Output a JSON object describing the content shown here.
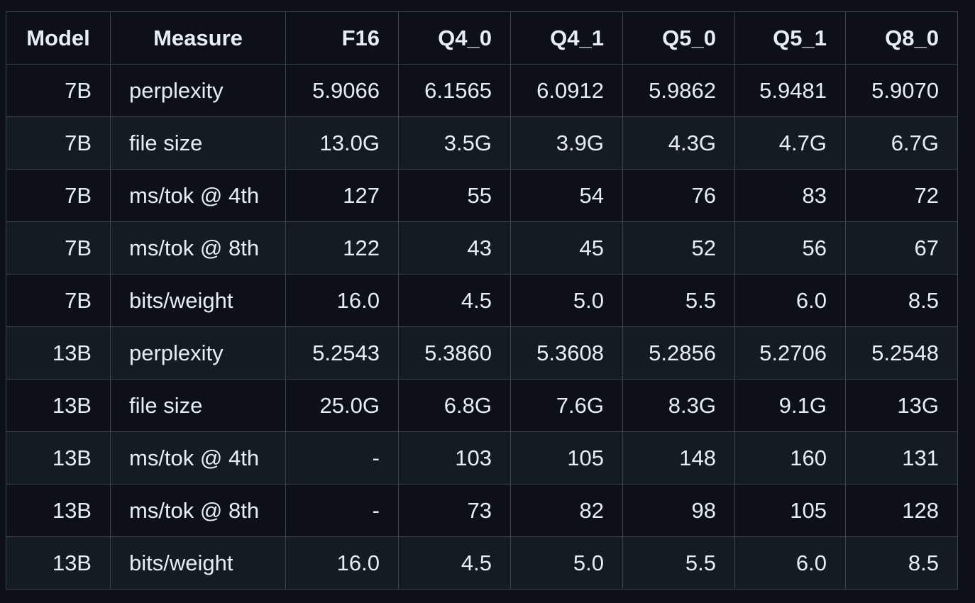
{
  "table": {
    "headers": {
      "model": "Model",
      "measure": "Measure",
      "f16": "F16",
      "q4_0": "Q4_0",
      "q4_1": "Q4_1",
      "q5_0": "Q5_0",
      "q5_1": "Q5_1",
      "q8_0": "Q8_0"
    },
    "rows": [
      {
        "model": "7B",
        "measure": "perplexity",
        "f16": "5.9066",
        "q4_0": "6.1565",
        "q4_1": "6.0912",
        "q5_0": "5.9862",
        "q5_1": "5.9481",
        "q8_0": "5.9070"
      },
      {
        "model": "7B",
        "measure": "file size",
        "f16": "13.0G",
        "q4_0": "3.5G",
        "q4_1": "3.9G",
        "q5_0": "4.3G",
        "q5_1": "4.7G",
        "q8_0": "6.7G"
      },
      {
        "model": "7B",
        "measure": "ms/tok @ 4th",
        "f16": "127",
        "q4_0": "55",
        "q4_1": "54",
        "q5_0": "76",
        "q5_1": "83",
        "q8_0": "72"
      },
      {
        "model": "7B",
        "measure": "ms/tok @ 8th",
        "f16": "122",
        "q4_0": "43",
        "q4_1": "45",
        "q5_0": "52",
        "q5_1": "56",
        "q8_0": "67"
      },
      {
        "model": "7B",
        "measure": "bits/weight",
        "f16": "16.0",
        "q4_0": "4.5",
        "q4_1": "5.0",
        "q5_0": "5.5",
        "q5_1": "6.0",
        "q8_0": "8.5"
      },
      {
        "model": "13B",
        "measure": "perplexity",
        "f16": "5.2543",
        "q4_0": "5.3860",
        "q4_1": "5.3608",
        "q5_0": "5.2856",
        "q5_1": "5.2706",
        "q8_0": "5.2548"
      },
      {
        "model": "13B",
        "measure": "file size",
        "f16": "25.0G",
        "q4_0": "6.8G",
        "q4_1": "7.6G",
        "q5_0": "8.3G",
        "q5_1": "9.1G",
        "q8_0": "13G"
      },
      {
        "model": "13B",
        "measure": "ms/tok @ 4th",
        "f16": "-",
        "q4_0": "103",
        "q4_1": "105",
        "q5_0": "148",
        "q5_1": "160",
        "q8_0": "131"
      },
      {
        "model": "13B",
        "measure": "ms/tok @ 8th",
        "f16": "-",
        "q4_0": "73",
        "q4_1": "82",
        "q5_0": "98",
        "q5_1": "105",
        "q8_0": "128"
      },
      {
        "model": "13B",
        "measure": "bits/weight",
        "f16": "16.0",
        "q4_0": "4.5",
        "q4_1": "5.0",
        "q5_0": "5.5",
        "q5_1": "6.0",
        "q8_0": "8.5"
      }
    ]
  },
  "colors": {
    "background": "#0d1117",
    "row_alt": "#151b23",
    "border": "#3d444d",
    "text": "#e6edf3"
  }
}
